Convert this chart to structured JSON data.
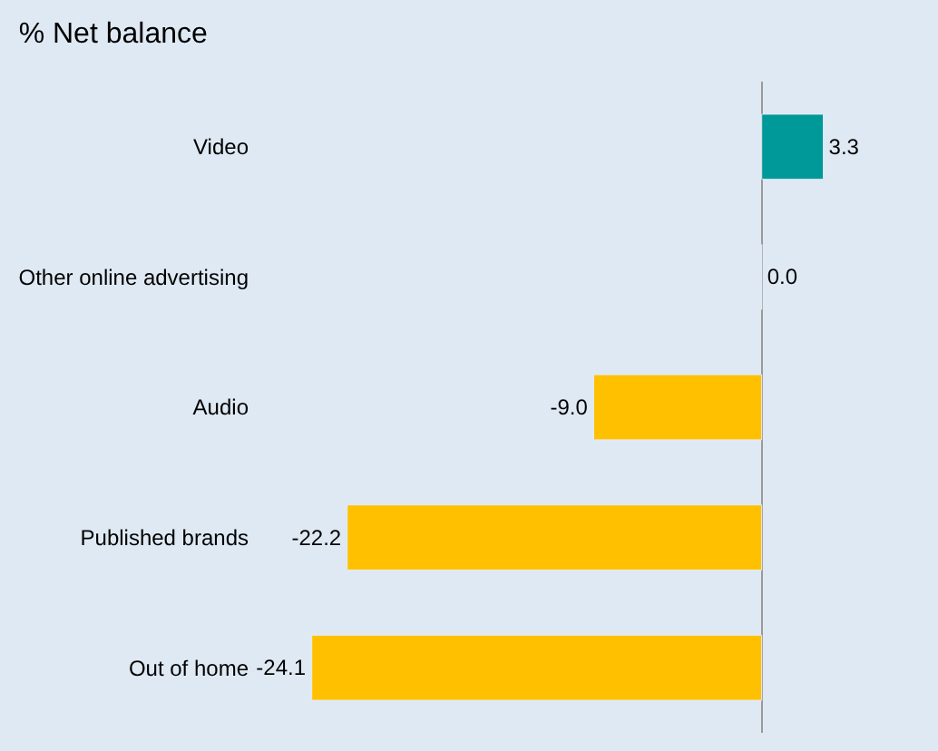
{
  "chart_data": {
    "type": "bar",
    "orientation": "horizontal",
    "title": "% Net balance",
    "categories": [
      "Video",
      "Other online advertising",
      "Audio",
      "Published brands",
      "Out of home"
    ],
    "values": [
      3.3,
      0.0,
      -9.0,
      -22.2,
      -24.1
    ],
    "value_labels": [
      "3.3",
      "0.0",
      "-9.0",
      "-22.2",
      "-24.1"
    ],
    "colors": [
      "#009999",
      null,
      "#ffc000",
      "#ffc000",
      "#ffc000"
    ],
    "grid": false,
    "legend": false,
    "tick_labels": "y"
  }
}
